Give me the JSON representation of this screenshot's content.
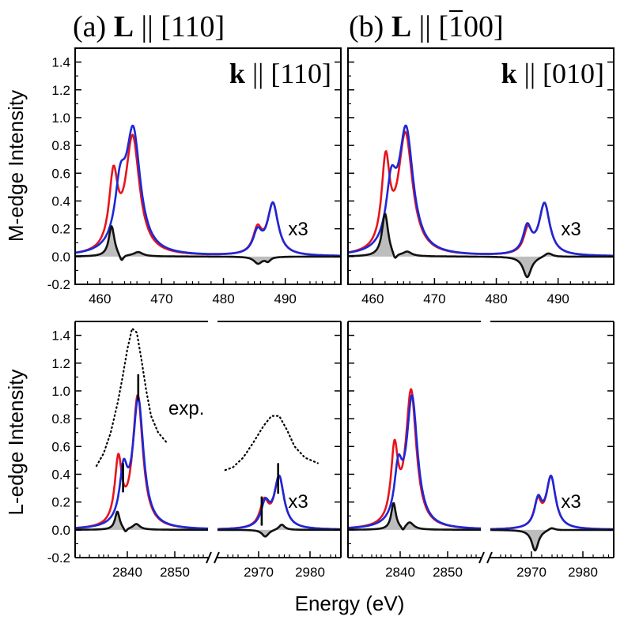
{
  "colors": {
    "red": "#e8141c",
    "blue": "#1c28d8",
    "black": "#111111",
    "fill": "#bdbdbd",
    "frame": "#000000"
  },
  "top_titles": [
    {
      "prefix": "(a) ",
      "bold": "L",
      "rest": " || [110]",
      "bar_index": -1
    },
    {
      "prefix": "(b) ",
      "bold": "L",
      "rest": " || [",
      "bar_digit": "1",
      "rest2": "00]"
    }
  ],
  "y_labels": {
    "top": "M-edge Intensity",
    "bottom": "L-edge Intensity"
  },
  "x_label": "Energy (eV)",
  "chart_data": [
    {
      "id": "a-top",
      "type": "line",
      "edge": "M",
      "inner_label": {
        "bold": "k",
        "rest": " || [110]"
      },
      "scale_note": "x3",
      "ylim": [
        -0.2,
        1.5
      ],
      "yticks": [
        -0.2,
        0.0,
        0.2,
        0.4,
        0.6,
        0.8,
        1.0,
        1.2,
        1.4
      ],
      "ytick_labels": [
        "-0.2",
        "0.0",
        "0.2",
        "0.4",
        "0.6",
        "0.8",
        "1.0",
        "1.2",
        "1.4"
      ],
      "xlim": [
        456,
        499
      ],
      "broken_axis": false,
      "xticks": [
        460,
        470,
        480,
        490
      ],
      "xtick_labels": [
        "460",
        "470",
        "480",
        "490"
      ],
      "series": [
        {
          "name": "red",
          "peaks": [
            [
              462.2,
              0.52,
              0.85
            ],
            [
              465.3,
              0.84,
              1.35
            ],
            [
              485.5,
              0.17,
              0.85
            ],
            [
              488.0,
              0.37,
              1.05
            ]
          ]
        },
        {
          "name": "blue",
          "peaks": [
            [
              463.3,
              0.4,
              1.05
            ],
            [
              465.4,
              0.86,
              1.4
            ],
            [
              485.5,
              0.15,
              0.85
            ],
            [
              488.0,
              0.37,
              1.05
            ]
          ]
        },
        {
          "name": "difference",
          "filled": true,
          "peaks": [
            [
              461.9,
              0.22,
              0.55
            ],
            [
              463.5,
              -0.05,
              0.4
            ],
            [
              466.2,
              0.03,
              0.9
            ],
            [
              485.6,
              -0.05,
              0.8
            ],
            [
              487.2,
              -0.03,
              0.5
            ]
          ]
        }
      ]
    },
    {
      "id": "b-top",
      "type": "line",
      "edge": "M",
      "inner_label": {
        "bold": "k",
        "rest": " || [010]"
      },
      "scale_note": "x3",
      "ylim": [
        -0.2,
        1.5
      ],
      "yticks": [
        -0.2,
        0.0,
        0.2,
        0.4,
        0.6,
        0.8,
        1.0,
        1.2,
        1.4
      ],
      "ytick_labels": [],
      "xlim": [
        456,
        499
      ],
      "broken_axis": false,
      "xticks": [
        460,
        470,
        480,
        490
      ],
      "xtick_labels": [
        "460",
        "470",
        "480",
        "490"
      ],
      "series": [
        {
          "name": "red",
          "peaks": [
            [
              462.1,
              0.62,
              0.8
            ],
            [
              465.3,
              0.86,
              1.4
            ],
            [
              485.1,
              0.17,
              0.8
            ],
            [
              487.8,
              0.37,
              1.05
            ]
          ]
        },
        {
          "name": "blue",
          "peaks": [
            [
              463.0,
              0.42,
              1.0
            ],
            [
              465.4,
              0.88,
              1.4
            ],
            [
              485.0,
              0.19,
              0.8
            ],
            [
              487.8,
              0.37,
              1.05
            ]
          ]
        },
        {
          "name": "difference",
          "filled": true,
          "peaks": [
            [
              462.0,
              0.31,
              0.6
            ],
            [
              463.6,
              -0.05,
              0.4
            ],
            [
              465.6,
              0.03,
              0.8
            ],
            [
              485.0,
              -0.15,
              0.8
            ],
            [
              488.4,
              0.03,
              0.8
            ]
          ]
        }
      ]
    },
    {
      "id": "a-bottom",
      "type": "line",
      "edge": "L",
      "scale_note": "x3",
      "annotation": "exp.",
      "ylim": [
        -0.2,
        1.5
      ],
      "yticks": [
        -0.2,
        0.0,
        0.2,
        0.4,
        0.6,
        0.8,
        1.0,
        1.2,
        1.4
      ],
      "ytick_labels": [
        "-0.2",
        "0.0",
        "0.2",
        "0.4",
        "0.6",
        "0.8",
        "1.0",
        "1.2",
        "1.4"
      ],
      "broken_axis": true,
      "segments": [
        {
          "xlim": [
            2829,
            2857
          ],
          "xticks": [
            2840,
            2850
          ]
        },
        {
          "xlim": [
            2962,
            2986
          ],
          "xticks": [
            2970,
            2980
          ]
        }
      ],
      "xtick_labels": [
        "2840",
        "2850",
        "2970",
        "2980"
      ],
      "series": [
        {
          "name": "red",
          "peaks": [
            [
              2838.1,
              0.46,
              0.9
            ],
            [
              2842.2,
              0.95,
              1.3
            ],
            [
              2971.1,
              0.18,
              1.0
            ],
            [
              2974.0,
              0.37,
              1.15
            ]
          ]
        },
        {
          "name": "blue",
          "peaks": [
            [
              2839.2,
              0.36,
              1.0
            ],
            [
              2842.3,
              0.92,
              1.35
            ],
            [
              2971.3,
              0.17,
              1.0
            ],
            [
              2974.0,
              0.37,
              1.15
            ]
          ]
        },
        {
          "name": "difference",
          "filled": true,
          "peaks": [
            [
              2837.9,
              0.13,
              0.6
            ],
            [
              2839.6,
              -0.03,
              0.4
            ],
            [
              2841.9,
              0.04,
              0.9
            ],
            [
              2971.3,
              -0.05,
              0.8
            ],
            [
              2974.5,
              0.04,
              0.7
            ]
          ]
        },
        {
          "name": "experiment",
          "dotted": true,
          "segments": [
            {
              "x": [
                2833.5,
                2835,
                2836.5,
                2838,
                2839,
                2840,
                2841,
                2842,
                2843,
                2844,
                2845,
                2846.5,
                2848.5
              ],
              "y": [
                0.46,
                0.55,
                0.7,
                0.92,
                1.1,
                1.3,
                1.45,
                1.42,
                1.22,
                1.0,
                0.82,
                0.7,
                0.62
              ]
            },
            {
              "x": [
                2963.5,
                2965,
                2967,
                2969,
                2971,
                2972.5,
                2974,
                2975.5,
                2977,
                2979,
                2981.5
              ],
              "y": [
                0.43,
                0.45,
                0.52,
                0.63,
                0.75,
                0.82,
                0.82,
                0.72,
                0.6,
                0.52,
                0.48
              ]
            }
          ]
        }
      ],
      "markers": [
        {
          "x": 2839.1,
          "y0": 0.27,
          "y1": 0.48
        },
        {
          "x": 2842.3,
          "y0": 0.93,
          "y1": 1.12
        },
        {
          "x": 2970.6,
          "y0": 0.03,
          "y1": 0.24
        },
        {
          "x": 2973.8,
          "y0": 0.26,
          "y1": 0.48
        }
      ]
    },
    {
      "id": "b-bottom",
      "type": "line",
      "edge": "L",
      "scale_note": "x3",
      "ylim": [
        -0.2,
        1.5
      ],
      "yticks": [
        -0.2,
        0.0,
        0.2,
        0.4,
        0.6,
        0.8,
        1.0,
        1.2,
        1.4
      ],
      "ytick_labels": [],
      "broken_axis": true,
      "segments": [
        {
          "xlim": [
            2829,
            2857
          ],
          "xticks": [
            2840,
            2850
          ]
        },
        {
          "xlim": [
            2962,
            2986
          ],
          "xticks": [
            2970,
            2980
          ]
        }
      ],
      "xtick_labels": [
        "2840",
        "2850",
        "2970",
        "2980"
      ],
      "series": [
        {
          "name": "red",
          "peaks": [
            [
              2838.8,
              0.52,
              0.9
            ],
            [
              2842.3,
              0.98,
              1.35
            ],
            [
              2971.2,
              0.18,
              0.85
            ],
            [
              2973.8,
              0.37,
              1.1
            ]
          ]
        },
        {
          "name": "blue",
          "peaks": [
            [
              2839.6,
              0.36,
              1.0
            ],
            [
              2842.5,
              0.93,
              1.4
            ],
            [
              2971.3,
              0.19,
              0.85
            ],
            [
              2973.8,
              0.37,
              1.1
            ]
          ]
        },
        {
          "name": "difference",
          "filled": true,
          "peaks": [
            [
              2838.6,
              0.19,
              0.6
            ],
            [
              2840.6,
              -0.03,
              0.4
            ],
            [
              2842.0,
              0.05,
              1.0
            ],
            [
              2970.7,
              -0.15,
              0.8
            ],
            [
              2973.9,
              0.02,
              0.8
            ]
          ]
        }
      ]
    }
  ]
}
